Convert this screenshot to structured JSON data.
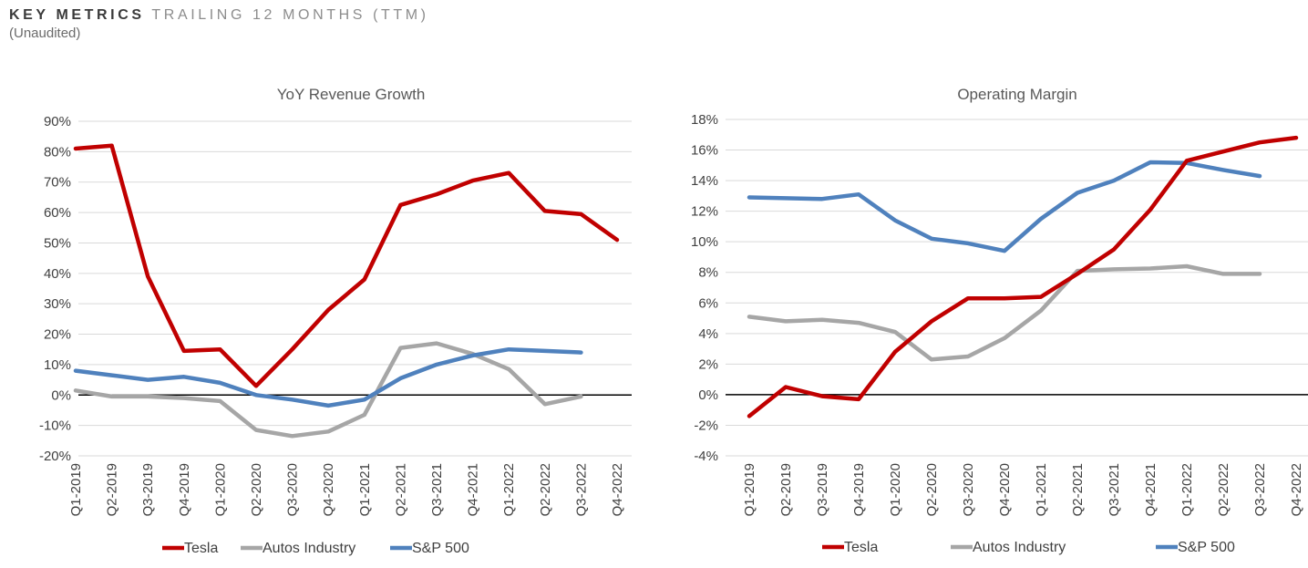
{
  "header": {
    "title_bold": "KEY METRICS",
    "title_light": "TRAILING 12 MONTHS (TTM)",
    "subtitle": "(Unaudited)"
  },
  "chart_data": [
    {
      "type": "line",
      "title": "YoY Revenue Growth",
      "categories": [
        "Q1-2019",
        "Q2-2019",
        "Q3-2019",
        "Q4-2019",
        "Q1-2020",
        "Q2-2020",
        "Q3-2020",
        "Q4-2020",
        "Q1-2021",
        "Q2-2021",
        "Q3-2021",
        "Q4-2021",
        "Q1-2022",
        "Q2-2022",
        "Q3-2022",
        "Q4-2022"
      ],
      "ylim": [
        -20,
        90
      ],
      "y_ticks": [
        -20,
        -10,
        0,
        10,
        20,
        30,
        40,
        50,
        60,
        70,
        80,
        90
      ],
      "y_tick_labels": [
        "-20%",
        "-10%",
        "0%",
        "10%",
        "20%",
        "30%",
        "40%",
        "50%",
        "60%",
        "70%",
        "80%",
        "90%"
      ],
      "grid": true,
      "legend_position": "bottom",
      "series": [
        {
          "name": "Tesla",
          "color": "#c00000",
          "values": [
            81,
            82,
            39,
            14.5,
            15,
            3,
            15,
            28,
            38,
            62.5,
            66,
            70.5,
            73,
            60.5,
            59.5,
            51
          ]
        },
        {
          "name": "Autos Industry",
          "color": "#a6a6a6",
          "values": [
            1.5,
            -0.5,
            -0.5,
            -1,
            -2,
            -11.5,
            -13.5,
            -12,
            -6.5,
            15.5,
            17,
            13.5,
            8.5,
            -3,
            -0.5,
            null
          ]
        },
        {
          "name": "S&P 500",
          "color": "#4f81bd",
          "values": [
            8,
            6.5,
            5,
            6,
            4,
            0,
            -1.5,
            -3.5,
            -1.5,
            5.5,
            10,
            13,
            15,
            14.5,
            14,
            null
          ]
        }
      ]
    },
    {
      "type": "line",
      "title": "Operating Margin",
      "categories": [
        "Q1-2019",
        "Q2-2019",
        "Q3-2019",
        "Q4-2019",
        "Q1-2020",
        "Q2-2020",
        "Q3-2020",
        "Q4-2020",
        "Q1-2021",
        "Q2-2021",
        "Q3-2021",
        "Q4-2021",
        "Q1-2022",
        "Q2-2022",
        "Q3-2022",
        "Q4-2022"
      ],
      "ylim": [
        -4,
        18
      ],
      "y_ticks": [
        -4,
        -2,
        0,
        2,
        4,
        6,
        8,
        10,
        12,
        14,
        16,
        18
      ],
      "y_tick_labels": [
        "-4%",
        "-2%",
        "0%",
        "2%",
        "4%",
        "6%",
        "8%",
        "10%",
        "12%",
        "14%",
        "16%",
        "18%"
      ],
      "grid": true,
      "legend_position": "bottom",
      "series": [
        {
          "name": "Tesla",
          "color": "#c00000",
          "values": [
            -1.4,
            0.5,
            -0.1,
            -0.3,
            2.8,
            4.8,
            6.3,
            6.3,
            6.4,
            7.9,
            9.5,
            12.1,
            15.3,
            15.9,
            16.5,
            16.8
          ]
        },
        {
          "name": "Autos Industry",
          "color": "#a6a6a6",
          "values": [
            5.1,
            4.8,
            4.9,
            4.7,
            4.1,
            2.3,
            2.5,
            3.7,
            5.5,
            8.1,
            8.2,
            8.25,
            8.4,
            7.9,
            7.9,
            null
          ]
        },
        {
          "name": "S&P 500",
          "color": "#4f81bd",
          "values": [
            12.9,
            12.85,
            12.8,
            13.1,
            11.4,
            10.2,
            9.9,
            9.4,
            11.5,
            13.2,
            14.0,
            15.2,
            15.15,
            14.7,
            14.3,
            null
          ]
        }
      ]
    }
  ]
}
